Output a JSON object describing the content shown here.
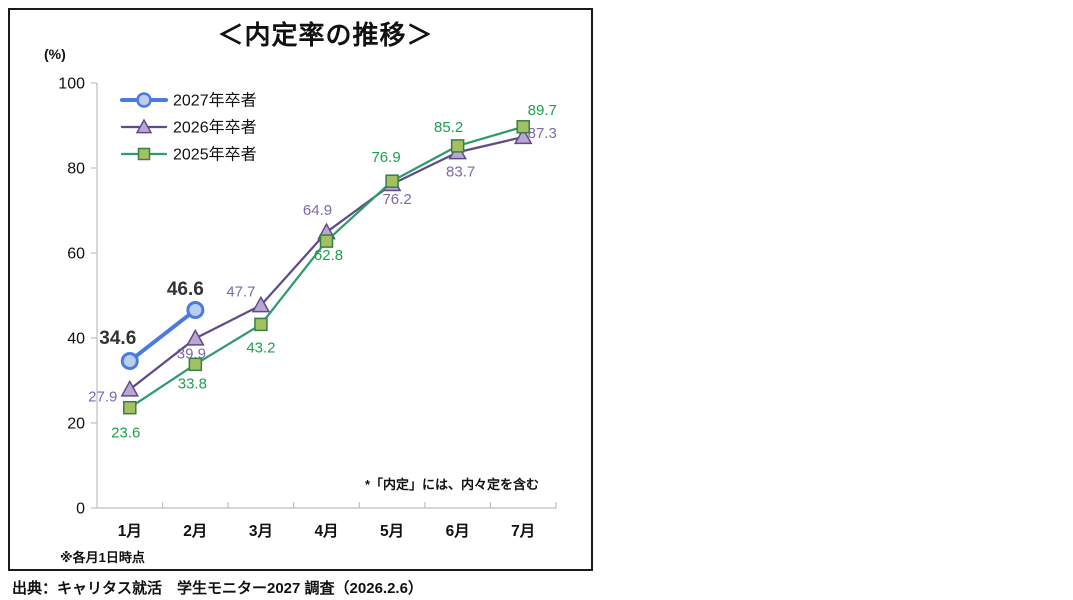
{
  "frame": {
    "title": "＜内定率の推移＞",
    "y_unit": "(%)"
  },
  "notes": {
    "in_chart": "*「内定」には、内々定を含む",
    "below_axis": "※各月1日時点"
  },
  "source": "出典：キャリタス就活　学生モニター2027 調査（2026.2.6）",
  "chart_data": {
    "type": "line",
    "title": "＜内定率の推移＞",
    "y_unit": "(%)",
    "categories": [
      "1月",
      "2月",
      "3月",
      "4月",
      "5月",
      "6月",
      "7月"
    ],
    "ylim": [
      0,
      100
    ],
    "yticks": [
      0,
      20,
      40,
      60,
      80,
      100
    ],
    "grid": false,
    "legend_position": "top-left-inside",
    "axis_color": "#bfbfbf",
    "tick_label_color": "#111111",
    "series": [
      {
        "name": "2027年卒者",
        "marker": "circle",
        "color": "#4a7be0",
        "marker_fill": "#bccdf2",
        "marker_stroke": "#4a7be0",
        "label_color": "#333333",
        "label_font": 19,
        "label_bold": true,
        "line_width": 4,
        "z": 3,
        "values": [
          34.6,
          46.6
        ],
        "label_offsets": [
          [
            -12,
            -22
          ],
          [
            -10,
            -20
          ]
        ]
      },
      {
        "name": "2026年卒者",
        "marker": "triangle",
        "color": "#5f4b8b",
        "marker_fill": "#b9a7d2",
        "marker_stroke": "#5f4b8b",
        "label_color": "#7b68ae",
        "label_font": 15,
        "label_bold": false,
        "line_width": 2.25,
        "z": 1,
        "values": [
          27.9,
          39.9,
          47.7,
          64.9,
          76.2,
          83.7,
          87.3
        ],
        "label_offsets": [
          [
            -27,
            7
          ],
          [
            -4,
            15
          ],
          [
            -20,
            -14
          ],
          [
            -9,
            -22
          ],
          [
            5,
            15
          ],
          [
            3,
            19
          ],
          [
            19,
            -4
          ]
        ]
      },
      {
        "name": "2025年卒者",
        "marker": "square",
        "color": "#2e9b6a",
        "marker_fill": "#a4c161",
        "marker_stroke": "#3a7d46",
        "label_color": "#1ca14a",
        "label_font": 15,
        "label_bold": false,
        "line_width": 2.25,
        "z": 2,
        "values": [
          23.6,
          33.8,
          43.2,
          62.8,
          76.9,
          85.2,
          89.7
        ],
        "label_offsets": [
          [
            -4,
            25
          ],
          [
            -3,
            19
          ],
          [
            0,
            23
          ],
          [
            2,
            14
          ],
          [
            -6,
            -24
          ],
          [
            -9,
            -19
          ],
          [
            19,
            -17
          ]
        ]
      }
    ]
  }
}
